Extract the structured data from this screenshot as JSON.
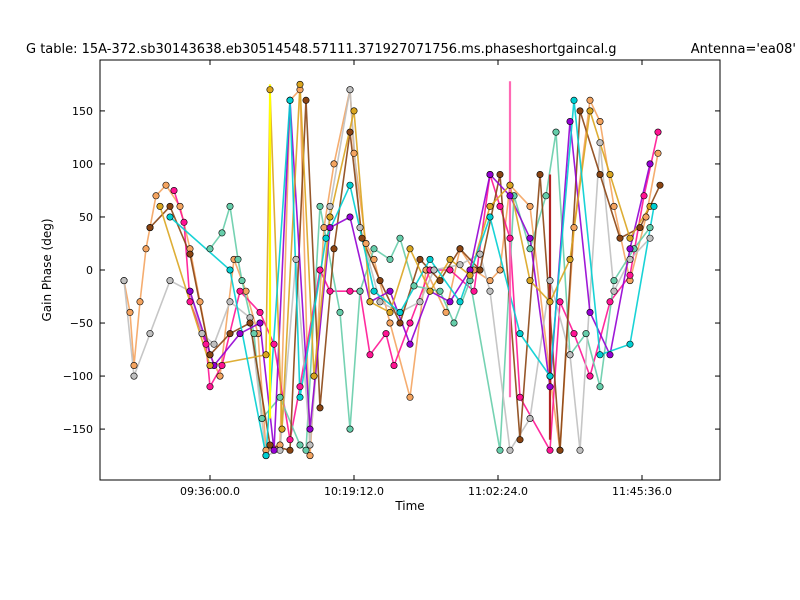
{
  "chart_data": {
    "type": "scatter",
    "title": "G table: 15A-372.sb30143638.eb30514548.57111.371927071756.ms.phaseshortgaincal.g",
    "antenna_label": "Antenna='ea08'",
    "xlabel": "Time",
    "ylabel": "Gain Phase (deg)",
    "xlim": [
      9.05,
      12.15
    ],
    "ylim": [
      -198,
      198
    ],
    "x_ticks": [
      {
        "value": 9.6,
        "label": "09:36:00.0"
      },
      {
        "value": 10.32,
        "label": "10:19:12.0"
      },
      {
        "value": 11.04,
        "label": "11:02:24.0"
      },
      {
        "value": 11.76,
        "label": "11:45:36.0"
      }
    ],
    "y_ticks": [
      {
        "value": -150,
        "label": "−150"
      },
      {
        "value": -100,
        "label": "−100"
      },
      {
        "value": -50,
        "label": "−50"
      },
      {
        "value": 0,
        "label": "0"
      },
      {
        "value": 50,
        "label": "50"
      },
      {
        "value": 100,
        "label": "100"
      },
      {
        "value": 150,
        "label": "150"
      }
    ],
    "grid": false,
    "legend": "none",
    "series": [
      {
        "color": "#f4a460",
        "points": [
          [
            9.17,
            -10
          ],
          [
            9.2,
            -40
          ],
          [
            9.22,
            -90
          ],
          [
            9.25,
            -30
          ],
          [
            9.28,
            20
          ],
          [
            9.3,
            40
          ],
          [
            9.33,
            70
          ],
          [
            9.38,
            80
          ],
          [
            9.45,
            60
          ],
          [
            9.5,
            20
          ],
          [
            9.55,
            -30
          ],
          [
            9.6,
            -80
          ],
          [
            9.65,
            -100
          ],
          [
            9.72,
            10
          ],
          [
            9.78,
            -20
          ],
          [
            9.84,
            -60
          ],
          [
            9.88,
            -170
          ],
          [
            9.95,
            -165
          ],
          [
            10.0,
            160
          ],
          [
            10.05,
            170
          ],
          [
            10.1,
            -175
          ],
          [
            10.17,
            40
          ],
          [
            10.22,
            100
          ],
          [
            10.3,
            170
          ],
          [
            10.32,
            110
          ],
          [
            10.38,
            25
          ],
          [
            10.42,
            10
          ],
          [
            10.5,
            -50
          ],
          [
            10.6,
            -120
          ],
          [
            10.68,
            0
          ],
          [
            10.78,
            -40
          ],
          [
            10.85,
            20
          ],
          [
            10.92,
            0
          ],
          [
            11.0,
            -10
          ],
          [
            11.05,
            0
          ],
          [
            11.1,
            80
          ],
          [
            11.2,
            60
          ],
          [
            11.3,
            -100
          ],
          [
            11.35,
            -170
          ],
          [
            11.42,
            40
          ],
          [
            11.5,
            160
          ],
          [
            11.55,
            140
          ],
          [
            11.62,
            60
          ],
          [
            11.7,
            -10
          ],
          [
            11.78,
            50
          ],
          [
            11.84,
            110
          ]
        ]
      },
      {
        "color": "#ff1493",
        "points": [
          [
            9.42,
            75
          ],
          [
            9.47,
            45
          ],
          [
            9.5,
            -30
          ],
          [
            9.58,
            -70
          ],
          [
            9.6,
            -110
          ],
          [
            9.66,
            -90
          ],
          [
            9.75,
            -20
          ],
          [
            9.85,
            -40
          ],
          [
            9.92,
            -70
          ],
          [
            10.0,
            -160
          ],
          [
            10.05,
            -110
          ],
          [
            10.15,
            0
          ],
          [
            10.2,
            -20
          ],
          [
            10.3,
            -20
          ],
          [
            10.35,
            -20
          ],
          [
            10.4,
            -80
          ],
          [
            10.48,
            -60
          ],
          [
            10.52,
            -90
          ],
          [
            10.6,
            -50
          ],
          [
            10.7,
            0
          ],
          [
            10.8,
            0
          ],
          [
            10.92,
            -20
          ],
          [
            11.0,
            90
          ],
          [
            11.05,
            60
          ],
          [
            11.1,
            30
          ],
          [
            11.15,
            -120
          ],
          [
            11.3,
            -170
          ],
          [
            11.35,
            -30
          ],
          [
            11.42,
            -60
          ],
          [
            11.5,
            -100
          ],
          [
            11.6,
            -30
          ],
          [
            11.7,
            -5
          ],
          [
            11.77,
            70
          ],
          [
            11.84,
            130
          ]
        ]
      },
      {
        "color": "#66cdaa",
        "points": [
          [
            9.6,
            20
          ],
          [
            9.66,
            35
          ],
          [
            9.7,
            60
          ],
          [
            9.74,
            10
          ],
          [
            9.76,
            -10
          ],
          [
            9.82,
            -60
          ],
          [
            9.86,
            -140
          ],
          [
            9.95,
            -120
          ],
          [
            10.05,
            -165
          ],
          [
            10.08,
            -170
          ],
          [
            10.15,
            60
          ],
          [
            10.25,
            -40
          ],
          [
            10.3,
            -150
          ],
          [
            10.35,
            -20
          ],
          [
            10.42,
            20
          ],
          [
            10.5,
            10
          ],
          [
            10.55,
            30
          ],
          [
            10.62,
            -15
          ],
          [
            10.75,
            -20
          ],
          [
            10.82,
            -50
          ],
          [
            10.9,
            -10
          ],
          [
            11.05,
            -170
          ],
          [
            11.12,
            70
          ],
          [
            11.2,
            20
          ],
          [
            11.28,
            70
          ],
          [
            11.33,
            130
          ],
          [
            11.4,
            -80
          ],
          [
            11.48,
            -60
          ],
          [
            11.55,
            -110
          ],
          [
            11.62,
            -10
          ],
          [
            11.72,
            20
          ],
          [
            11.8,
            40
          ]
        ]
      },
      {
        "color": "#c0c0c0",
        "points": [
          [
            9.17,
            -10
          ],
          [
            9.22,
            -100
          ],
          [
            9.3,
            -60
          ],
          [
            9.4,
            -10
          ],
          [
            9.5,
            -20
          ],
          [
            9.56,
            -60
          ],
          [
            9.62,
            -70
          ],
          [
            9.7,
            -30
          ],
          [
            9.8,
            -45
          ],
          [
            9.88,
            -175
          ],
          [
            9.95,
            -170
          ],
          [
            10.03,
            10
          ],
          [
            10.1,
            -165
          ],
          [
            10.2,
            60
          ],
          [
            10.3,
            170
          ],
          [
            10.35,
            40
          ],
          [
            10.45,
            -30
          ],
          [
            10.55,
            -40
          ],
          [
            10.65,
            -30
          ],
          [
            10.72,
            0
          ],
          [
            10.85,
            5
          ],
          [
            10.95,
            15
          ],
          [
            11.0,
            -20
          ],
          [
            11.1,
            -170
          ],
          [
            11.2,
            -140
          ],
          [
            11.3,
            -10
          ],
          [
            11.4,
            -80
          ],
          [
            11.45,
            -170
          ],
          [
            11.55,
            120
          ],
          [
            11.62,
            -20
          ],
          [
            11.7,
            10
          ],
          [
            11.8,
            30
          ]
        ]
      },
      {
        "color": "#8b4513",
        "points": [
          [
            9.3,
            40
          ],
          [
            9.4,
            60
          ],
          [
            9.5,
            15
          ],
          [
            9.6,
            -80
          ],
          [
            9.7,
            -60
          ],
          [
            9.8,
            -50
          ],
          [
            9.9,
            -165
          ],
          [
            10.0,
            -170
          ],
          [
            10.08,
            160
          ],
          [
            10.15,
            -130
          ],
          [
            10.22,
            20
          ],
          [
            10.3,
            130
          ],
          [
            10.36,
            30
          ],
          [
            10.45,
            -10
          ],
          [
            10.55,
            -50
          ],
          [
            10.65,
            10
          ],
          [
            10.75,
            -10
          ],
          [
            10.85,
            20
          ],
          [
            10.95,
            0
          ],
          [
            11.05,
            90
          ],
          [
            11.15,
            -160
          ],
          [
            11.25,
            90
          ],
          [
            11.35,
            -170
          ],
          [
            11.45,
            150
          ],
          [
            11.55,
            90
          ],
          [
            11.65,
            30
          ],
          [
            11.75,
            40
          ],
          [
            11.85,
            80
          ]
        ]
      },
      {
        "color": "#9400d3",
        "points": [
          [
            9.5,
            -20
          ],
          [
            9.62,
            -90
          ],
          [
            9.75,
            -60
          ],
          [
            9.85,
            -50
          ],
          [
            9.92,
            -170
          ],
          [
            10.0,
            160
          ],
          [
            10.1,
            -150
          ],
          [
            10.2,
            40
          ],
          [
            10.3,
            50
          ],
          [
            10.4,
            -30
          ],
          [
            10.5,
            -20
          ],
          [
            10.6,
            -70
          ],
          [
            10.7,
            -20
          ],
          [
            10.8,
            -30
          ],
          [
            10.9,
            0
          ],
          [
            11.0,
            90
          ],
          [
            11.1,
            70
          ],
          [
            11.2,
            30
          ],
          [
            11.3,
            -110
          ],
          [
            11.4,
            140
          ],
          [
            11.5,
            -40
          ],
          [
            11.6,
            -80
          ],
          [
            11.7,
            20
          ],
          [
            11.8,
            100
          ]
        ]
      },
      {
        "color": "#daa520",
        "points": [
          [
            9.35,
            60
          ],
          [
            9.6,
            -90
          ],
          [
            9.88,
            -80
          ],
          [
            9.9,
            170
          ],
          [
            9.96,
            -150
          ],
          [
            10.05,
            175
          ],
          [
            10.12,
            -100
          ],
          [
            10.2,
            50
          ],
          [
            10.32,
            150
          ],
          [
            10.4,
            -30
          ],
          [
            10.5,
            -40
          ],
          [
            10.6,
            20
          ],
          [
            10.7,
            -20
          ],
          [
            10.8,
            10
          ],
          [
            10.9,
            -5
          ],
          [
            11.0,
            60
          ],
          [
            11.1,
            80
          ],
          [
            11.2,
            -10
          ],
          [
            11.3,
            -30
          ],
          [
            11.4,
            10
          ],
          [
            11.5,
            150
          ],
          [
            11.6,
            90
          ],
          [
            11.7,
            30
          ],
          [
            11.8,
            60
          ]
        ]
      },
      {
        "color": "#00ced1",
        "points": [
          [
            9.4,
            50
          ],
          [
            9.7,
            0
          ],
          [
            9.88,
            -175
          ],
          [
            10.0,
            160
          ],
          [
            10.05,
            -120
          ],
          [
            10.18,
            30
          ],
          [
            10.3,
            80
          ],
          [
            10.42,
            -20
          ],
          [
            10.55,
            -40
          ],
          [
            10.7,
            10
          ],
          [
            10.85,
            -30
          ],
          [
            11.0,
            50
          ],
          [
            11.15,
            -60
          ],
          [
            11.3,
            -100
          ],
          [
            11.42,
            160
          ],
          [
            11.55,
            -80
          ],
          [
            11.7,
            -70
          ],
          [
            11.82,
            60
          ]
        ]
      }
    ],
    "straight_segments": [
      {
        "color": "#ffff00",
        "from": [
          9.9,
          175
        ],
        "to": [
          9.9,
          -140
        ]
      },
      {
        "color": "#ff69b4",
        "from": [
          11.1,
          178
        ],
        "to": [
          11.1,
          -120
        ]
      },
      {
        "color": "#b22222",
        "from": [
          11.3,
          -160
        ],
        "to": [
          11.3,
          90
        ]
      }
    ]
  }
}
